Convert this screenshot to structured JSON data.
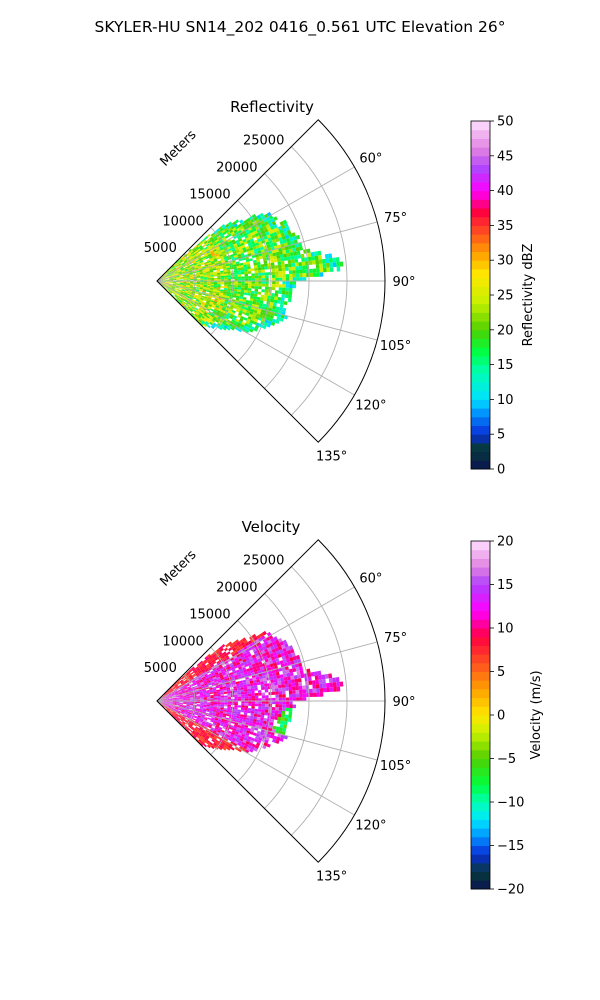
{
  "figure": {
    "suptitle": "SKYLER-HU  SN14_202  0416_0.561 UTC Elevation 26°"
  },
  "chart_data": [
    {
      "type": "polar-sector-heatmap",
      "title": "Reflectivity",
      "radial_label": "Meters",
      "radial_ticks": [
        5000,
        10000,
        15000,
        20000,
        25000
      ],
      "rmax": 30000,
      "angular_range_deg": [
        45,
        135
      ],
      "angular_ticks": [
        "60°",
        "75°",
        "90°",
        "105°",
        "120°",
        "135°"
      ],
      "angular_tick_values": [
        60,
        75,
        90,
        105,
        120,
        135
      ],
      "grid": true,
      "colorbar": {
        "label": "Reflectivity dBZ",
        "range": [
          0,
          50
        ],
        "ticks": [
          "0",
          "5",
          "10",
          "15",
          "20",
          "25",
          "30",
          "35",
          "40",
          "45",
          "50"
        ],
        "stops": [
          [
            "0",
            "#0a1450"
          ],
          [
            "3",
            "#063a3a"
          ],
          [
            "5",
            "#0a2dd8"
          ],
          [
            "8",
            "#0090ff"
          ],
          [
            "10",
            "#00e0ff"
          ],
          [
            "14",
            "#00ffb0"
          ],
          [
            "17",
            "#00ff40"
          ],
          [
            "20",
            "#50d000"
          ],
          [
            "24",
            "#c8f000"
          ],
          [
            "28",
            "#ffe800"
          ],
          [
            "31",
            "#ffa000"
          ],
          [
            "34",
            "#ff5020"
          ],
          [
            "37",
            "#ff0040"
          ],
          [
            "40",
            "#ff00ff"
          ],
          [
            "43",
            "#b040ff"
          ],
          [
            "46",
            "#e080e0"
          ],
          [
            "50",
            "#ffe0ff"
          ]
        ]
      },
      "echo_extent": {
        "max_range_m_by_azimuth": [
          [
            45,
            3000
          ],
          [
            50,
            11000
          ],
          [
            55,
            14000
          ],
          [
            58,
            17000
          ],
          [
            62,
            17500
          ],
          [
            66,
            18500
          ],
          [
            70,
            19000
          ],
          [
            74,
            19500
          ],
          [
            78,
            19500
          ],
          [
            82,
            23500
          ],
          [
            86,
            24500
          ],
          [
            90,
            18000
          ],
          [
            94,
            18000
          ],
          [
            98,
            17500
          ],
          [
            102,
            17000
          ],
          [
            106,
            17500
          ],
          [
            110,
            16500
          ],
          [
            114,
            15000
          ],
          [
            118,
            14000
          ],
          [
            122,
            12000
          ],
          [
            128,
            10000
          ],
          [
            135,
            8000
          ]
        ],
        "dominant_value_dBZ": 20
      }
    },
    {
      "type": "polar-sector-heatmap",
      "title": "Velocity",
      "radial_label": "Meters",
      "radial_ticks": [
        5000,
        10000,
        15000,
        20000,
        25000
      ],
      "rmax": 30000,
      "angular_range_deg": [
        45,
        135
      ],
      "angular_ticks": [
        "60°",
        "75°",
        "90°",
        "105°",
        "120°",
        "135°"
      ],
      "angular_tick_values": [
        60,
        75,
        90,
        105,
        120,
        135
      ],
      "grid": true,
      "colorbar": {
        "label": "Velocity (m/s)",
        "range": [
          -20,
          20
        ],
        "ticks": [
          "−20",
          "−15",
          "−10",
          "−5",
          "0",
          "5",
          "10",
          "15",
          "20"
        ],
        "stops": [
          [
            "-20",
            "#0a1450"
          ],
          [
            "-18",
            "#063a3a"
          ],
          [
            "-16",
            "#0a2dd8"
          ],
          [
            "-14",
            "#0090ff"
          ],
          [
            "-12",
            "#00e8ff"
          ],
          [
            "-10",
            "#00ffb0"
          ],
          [
            "-8",
            "#00ff40"
          ],
          [
            "-5",
            "#50d000"
          ],
          [
            "-2",
            "#c8f000"
          ],
          [
            "0",
            "#ffe800"
          ],
          [
            "3",
            "#ffa000"
          ],
          [
            "6",
            "#ff5020"
          ],
          [
            "9",
            "#ff0040"
          ],
          [
            "12",
            "#ff00ff"
          ],
          [
            "15",
            "#b040ff"
          ],
          [
            "17",
            "#e080e0"
          ],
          [
            "20",
            "#ffe0ff"
          ]
        ]
      },
      "echo_extent": {
        "max_range_m_by_azimuth": [
          [
            45,
            3000
          ],
          [
            50,
            11000
          ],
          [
            55,
            14000
          ],
          [
            58,
            17000
          ],
          [
            62,
            17500
          ],
          [
            66,
            18500
          ],
          [
            70,
            19000
          ],
          [
            74,
            19500
          ],
          [
            78,
            19500
          ],
          [
            82,
            23500
          ],
          [
            86,
            24500
          ],
          [
            90,
            18000
          ],
          [
            94,
            18000
          ],
          [
            98,
            17500
          ],
          [
            102,
            17000
          ],
          [
            106,
            17500
          ],
          [
            110,
            16500
          ],
          [
            114,
            15000
          ],
          [
            118,
            14000
          ],
          [
            122,
            12000
          ],
          [
            128,
            10000
          ],
          [
            135,
            8000
          ]
        ],
        "dominant_value_ms": 13
      }
    }
  ]
}
